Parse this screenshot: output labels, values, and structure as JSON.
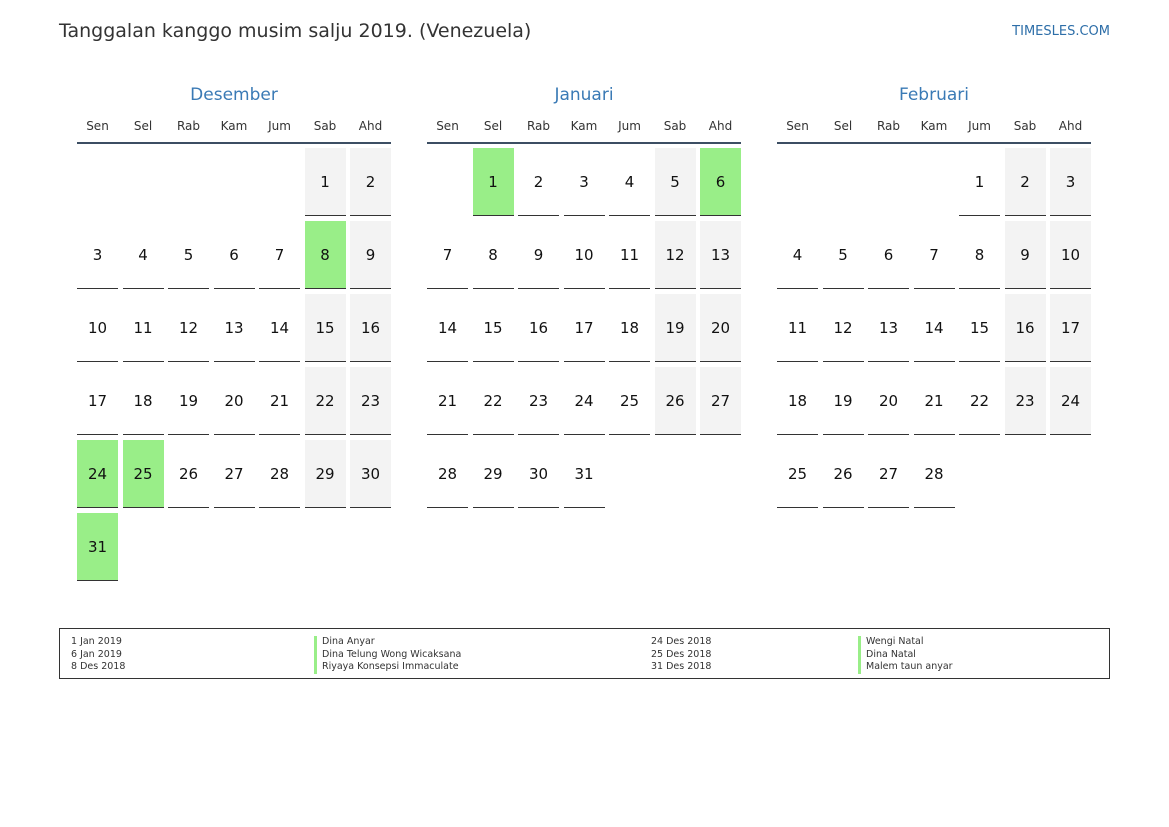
{
  "header": {
    "title": "Tanggalan kanggo musim salju 2019. (Venezuela)",
    "brand": "TIMESLES.COM"
  },
  "colors": {
    "holiday": "#99ee88",
    "weekend": "#f3f3f3",
    "accent": "#3a7ab5"
  },
  "weekdays": [
    "Sen",
    "Sel",
    "Rab",
    "Kam",
    "Jum",
    "Sab",
    "Ahd"
  ],
  "months": [
    {
      "name": "Desember",
      "weeks": [
        [
          "",
          "",
          "",
          "",
          "",
          "1",
          "2"
        ],
        [
          "3",
          "4",
          "5",
          "6",
          "7",
          "8",
          "9"
        ],
        [
          "10",
          "11",
          "12",
          "13",
          "14",
          "15",
          "16"
        ],
        [
          "17",
          "18",
          "19",
          "20",
          "21",
          "22",
          "23"
        ],
        [
          "24",
          "25",
          "26",
          "27",
          "28",
          "29",
          "30"
        ],
        [
          "31",
          "",
          "",
          "",
          "",
          "",
          ""
        ]
      ],
      "holidays": [
        "8",
        "24",
        "25",
        "31"
      ]
    },
    {
      "name": "Januari",
      "weeks": [
        [
          "",
          "1",
          "2",
          "3",
          "4",
          "5",
          "6"
        ],
        [
          "7",
          "8",
          "9",
          "10",
          "11",
          "12",
          "13"
        ],
        [
          "14",
          "15",
          "16",
          "17",
          "18",
          "19",
          "20"
        ],
        [
          "21",
          "22",
          "23",
          "24",
          "25",
          "26",
          "27"
        ],
        [
          "28",
          "29",
          "30",
          "31",
          "",
          "",
          ""
        ]
      ],
      "holidays": [
        "1",
        "6"
      ]
    },
    {
      "name": "Februari",
      "weeks": [
        [
          "",
          "",
          "",
          "",
          "1",
          "2",
          "3"
        ],
        [
          "4",
          "5",
          "6",
          "7",
          "8",
          "9",
          "10"
        ],
        [
          "11",
          "12",
          "13",
          "14",
          "15",
          "16",
          "17"
        ],
        [
          "18",
          "19",
          "20",
          "21",
          "22",
          "23",
          "24"
        ],
        [
          "25",
          "26",
          "27",
          "28",
          "",
          "",
          ""
        ]
      ],
      "holidays": []
    }
  ],
  "legend": {
    "left": [
      {
        "date": "1 Jan 2019",
        "name": "Dina Anyar"
      },
      {
        "date": "6 Jan 2019",
        "name": "Dina Telung Wong Wicaksana"
      },
      {
        "date": "8 Des 2018",
        "name": "Riyaya Konsepsi Immaculate"
      }
    ],
    "right": [
      {
        "date": "24 Des 2018",
        "name": "Wengi Natal"
      },
      {
        "date": "25 Des 2018",
        "name": "Dina Natal"
      },
      {
        "date": "31 Des 2018",
        "name": "Malem taun anyar"
      }
    ]
  }
}
